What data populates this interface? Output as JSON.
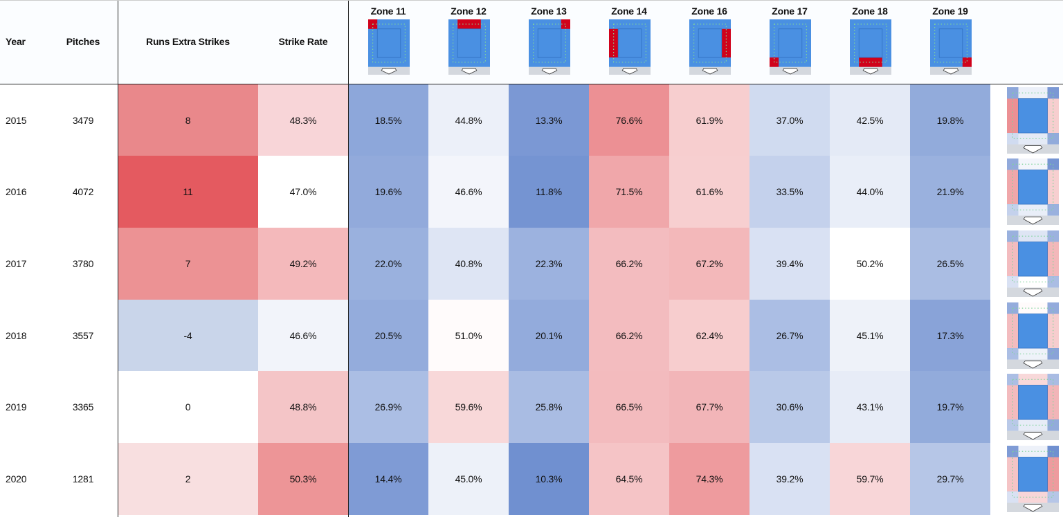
{
  "table": {
    "headers": [
      "Year",
      "Pitches",
      "Runs Extra Strikes",
      "Strike Rate",
      "Zone 11",
      "Zone 12",
      "Zone 13",
      "Zone 14",
      "Zone 16",
      "Zone 17",
      "Zone 18",
      "Zone 19"
    ],
    "rows": [
      [
        "2015",
        "3479",
        "8",
        "48.3%",
        "18.5%",
        "44.8%",
        "13.3%",
        "76.6%",
        "61.9%",
        "37.0%",
        "42.5%",
        "19.8%"
      ],
      [
        "2016",
        "4072",
        "11",
        "47.0%",
        "19.6%",
        "46.6%",
        "11.8%",
        "71.5%",
        "61.6%",
        "33.5%",
        "44.0%",
        "21.9%"
      ],
      [
        "2017",
        "3780",
        "7",
        "49.2%",
        "22.0%",
        "40.8%",
        "22.3%",
        "66.2%",
        "67.2%",
        "39.4%",
        "50.2%",
        "26.5%"
      ],
      [
        "2018",
        "3557",
        "-4",
        "46.6%",
        "20.5%",
        "51.0%",
        "20.1%",
        "66.2%",
        "62.4%",
        "26.7%",
        "45.1%",
        "17.3%"
      ],
      [
        "2019",
        "3365",
        "0",
        "48.8%",
        "26.9%",
        "59.6%",
        "25.8%",
        "66.5%",
        "67.7%",
        "30.6%",
        "43.1%",
        "19.7%"
      ],
      [
        "2020",
        "1281",
        "2",
        "50.3%",
        "14.4%",
        "45.0%",
        "10.3%",
        "64.5%",
        "74.3%",
        "39.2%",
        "59.7%",
        "29.7%"
      ]
    ],
    "colors": [
      [
        "#e9888b",
        "#f8d5d8",
        "#8da7da",
        "#ecf0f9",
        "#7b98d4",
        "#ec9094",
        "#f7cecf",
        "#d0dbf0",
        "#e4eaf6",
        "#92abdb"
      ],
      [
        "#e45a60",
        "#ffffff",
        "#92aadb",
        "#f3f5fb",
        "#7594d2",
        "#f0a7aa",
        "#f7cfd0",
        "#c4d1ec",
        "#e9eef8",
        "#9ab1de"
      ],
      [
        "#ec9294",
        "#f4b9bb",
        "#9ab1de",
        "#dee5f4",
        "#9cb2df",
        "#f3bcbf",
        "#f3b8ba",
        "#d9e1f3",
        "#ffffff",
        "#aabde3"
      ],
      [
        "#c9d5ea",
        "#f2f4fa",
        "#94acdc",
        "#fffbfb",
        "#93abdc",
        "#f3bcbf",
        "#f7cdce",
        "#abbee4",
        "#eef2f9",
        "#89a3d8"
      ],
      [
        "#ffffff",
        "#f4c5c7",
        "#abbee4",
        "#f8d8d9",
        "#a9bce3",
        "#f3bbbe",
        "#f2b5b8",
        "#b9c9e8",
        "#e7ecf7",
        "#92abdb"
      ],
      [
        "#f8dfe0",
        "#ed9597",
        "#7f9bd5",
        "#edf1f9",
        "#7090d0",
        "#f5c4c6",
        "#ee9b9e",
        "#d9e1f3",
        "#f8d6d8",
        "#b6c6e7"
      ]
    ]
  }
}
